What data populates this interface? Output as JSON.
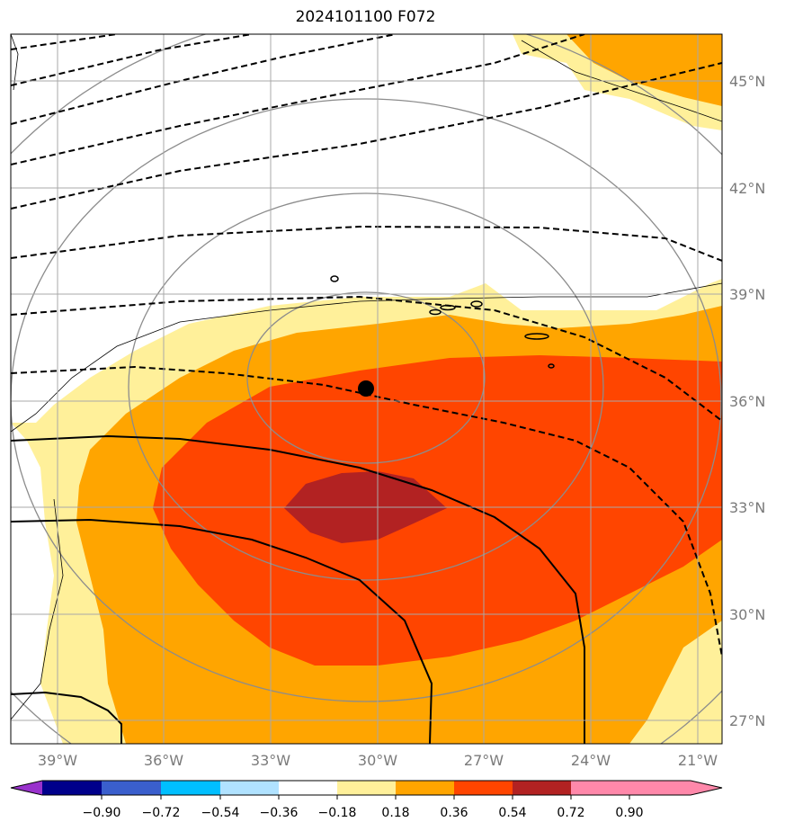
{
  "title": "2024101100 F072",
  "map": {
    "lon_labels": [
      "39°W",
      "36°W",
      "33°W",
      "30°W",
      "27°W",
      "24°W",
      "21°W"
    ],
    "lat_labels": [
      "45°N",
      "42°N",
      "39°N",
      "36°N",
      "33°N",
      "30°N",
      "27°N"
    ],
    "fill_colors": [
      "#fff09a",
      "#ffa500",
      "#ff4500",
      "#b22222"
    ],
    "contour_line_color": "#000000",
    "radius_circle_color": "#808080",
    "center_marker": "black-dot"
  },
  "colorbar": {
    "colors": [
      "#9932cc",
      "#00008b",
      "#3a5fcd",
      "#00bfff",
      "#b0e2ff",
      "#ffffff",
      "#fff09a",
      "#ffa500",
      "#ff4500",
      "#b22222",
      "#ff88aa"
    ],
    "ticks": [
      "−0.90",
      "−0.72",
      "−0.54",
      "−0.36",
      "−0.18",
      "0.18",
      "0.36",
      "0.54",
      "0.72",
      "0.90"
    ]
  }
}
